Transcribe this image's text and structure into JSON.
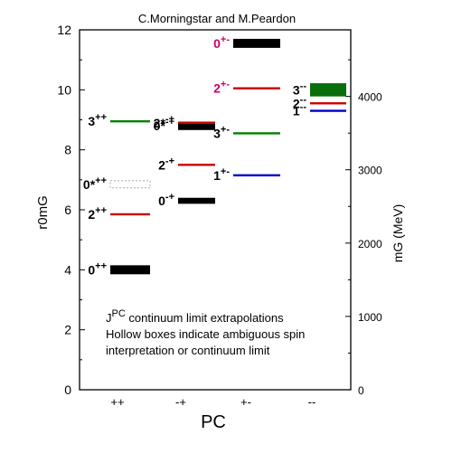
{
  "chart_data": {
    "type": "spectrum",
    "title": "C.Morningstar and M.Peardon",
    "xlabel": "PC",
    "ylabel_left": "r0mG",
    "ylabel_right": "mG (MeV)",
    "categories": [
      "++",
      "-+",
      "+-",
      "--"
    ],
    "ylim": [
      0,
      12
    ],
    "yticks_left": [
      0,
      2,
      4,
      6,
      8,
      10,
      12
    ],
    "yticks_right": [
      0,
      1000,
      2000,
      3000,
      4000
    ],
    "mev_per_unit": 409,
    "annotation": [
      "J^PC continuum limit extrapolations",
      "Hollow boxes indicate ambiguous spin",
      "interpretation or continuum limit"
    ],
    "states": [
      {
        "label": "0++",
        "pc": "++",
        "value": 4.0,
        "err": 0.15,
        "style": "box",
        "color": "#000000",
        "label_color": "#000000"
      },
      {
        "label": "2++",
        "pc": "++",
        "value": 5.85,
        "err": 0.03,
        "style": "line",
        "color": "#cc0000",
        "label_color": "#000000"
      },
      {
        "label": "0*++",
        "pc": "++",
        "value": 6.85,
        "err": 0.12,
        "style": "hollow",
        "color": "#aaaaaa",
        "label_color": "#000000"
      },
      {
        "label": "3++",
        "pc": "++",
        "value": 8.95,
        "err": 0.04,
        "style": "line",
        "color": "#008000",
        "label_color": "#000000"
      },
      {
        "label": "0-+",
        "pc": "-+",
        "value": 6.3,
        "err": 0.1,
        "style": "box",
        "color": "#000000",
        "label_color": "#000000"
      },
      {
        "label": "2-+",
        "pc": "-+",
        "value": 7.5,
        "err": 0.03,
        "style": "line",
        "color": "#cc0000",
        "label_color": "#000000"
      },
      {
        "label": "0*-+",
        "pc": "-+",
        "value": 8.8,
        "err": 0.14,
        "style": "box",
        "color": "#000000",
        "label_color": "#000000"
      },
      {
        "label": "2*-+",
        "pc": "-+",
        "value": 8.9,
        "err": 0.03,
        "style": "line",
        "color": "#cc0000",
        "label_color": "#000000"
      },
      {
        "label": "1+-",
        "pc": "+-",
        "value": 7.15,
        "err": 0.04,
        "style": "line",
        "color": "#0000cc",
        "label_color": "#000000"
      },
      {
        "label": "3+-",
        "pc": "+-",
        "value": 8.55,
        "err": 0.05,
        "style": "line",
        "color": "#008000",
        "label_color": "#000000"
      },
      {
        "label": "2+-",
        "pc": "+-",
        "value": 10.05,
        "err": 0.07,
        "style": "line",
        "color": "#cc0000",
        "label_color": "#cc0066"
      },
      {
        "label": "0+-",
        "pc": "+-",
        "value": 11.55,
        "err": 0.15,
        "style": "box",
        "color": "#000000",
        "label_color": "#cc0066"
      },
      {
        "label": "1--",
        "pc": "--",
        "value": 9.3,
        "err": 0.06,
        "style": "line",
        "color": "#0000cc",
        "label_color": "#000000"
      },
      {
        "label": "2--",
        "pc": "--",
        "value": 9.55,
        "err": 0.04,
        "style": "line",
        "color": "#cc0000",
        "label_color": "#000000"
      },
      {
        "label": "3--",
        "pc": "--",
        "value": 10.0,
        "err": 0.22,
        "style": "box",
        "color": "#0a6e0a",
        "label_color": "#000000"
      }
    ]
  }
}
